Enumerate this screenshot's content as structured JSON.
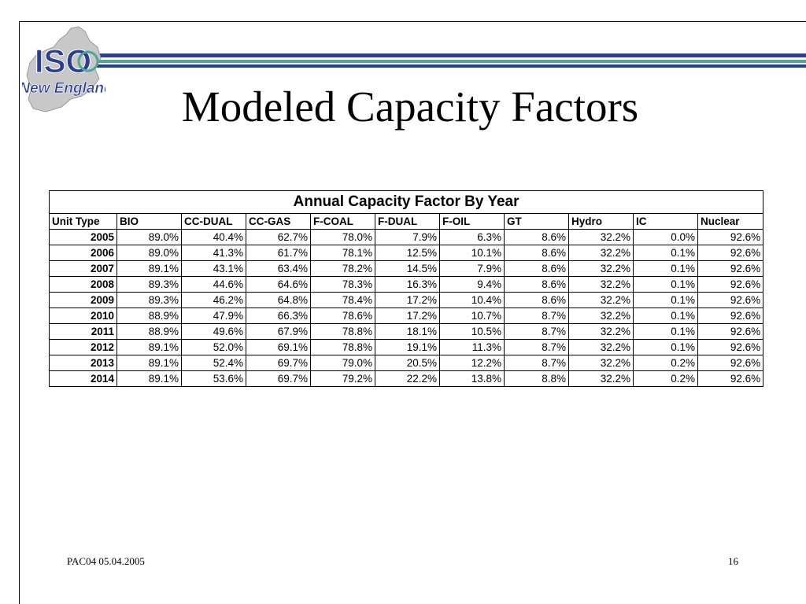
{
  "logo": {
    "line1": "ISO",
    "line2": "New England"
  },
  "title": "Modeled Capacity Factors",
  "table": {
    "caption": "Annual Capacity Factor By Year",
    "columns": [
      "Unit Type",
      "BIO",
      "CC-DUAL",
      "CC-GAS",
      "F-COAL",
      "F-DUAL",
      "F-OIL",
      "GT",
      "Hydro",
      "IC",
      "Nuclear"
    ],
    "rows": [
      [
        "2005",
        "89.0%",
        "40.4%",
        "62.7%",
        "78.0%",
        "7.9%",
        "6.3%",
        "8.6%",
        "32.2%",
        "0.0%",
        "92.6%"
      ],
      [
        "2006",
        "89.0%",
        "41.3%",
        "61.7%",
        "78.1%",
        "12.5%",
        "10.1%",
        "8.6%",
        "32.2%",
        "0.1%",
        "92.6%"
      ],
      [
        "2007",
        "89.1%",
        "43.1%",
        "63.4%",
        "78.2%",
        "14.5%",
        "7.9%",
        "8.6%",
        "32.2%",
        "0.1%",
        "92.6%"
      ],
      [
        "2008",
        "89.3%",
        "44.6%",
        "64.6%",
        "78.3%",
        "16.3%",
        "9.4%",
        "8.6%",
        "32.2%",
        "0.1%",
        "92.6%"
      ],
      [
        "2009",
        "89.3%",
        "46.2%",
        "64.8%",
        "78.4%",
        "17.2%",
        "10.4%",
        "8.6%",
        "32.2%",
        "0.1%",
        "92.6%"
      ],
      [
        "2010",
        "88.9%",
        "47.9%",
        "66.3%",
        "78.6%",
        "17.2%",
        "10.7%",
        "8.7%",
        "32.2%",
        "0.1%",
        "92.6%"
      ],
      [
        "2011",
        "88.9%",
        "49.6%",
        "67.9%",
        "78.8%",
        "18.1%",
        "10.5%",
        "8.7%",
        "32.2%",
        "0.1%",
        "92.6%"
      ],
      [
        "2012",
        "89.1%",
        "52.0%",
        "69.1%",
        "78.8%",
        "19.1%",
        "11.3%",
        "8.7%",
        "32.2%",
        "0.1%",
        "92.6%"
      ],
      [
        "2013",
        "89.1%",
        "52.4%",
        "69.7%",
        "79.0%",
        "20.5%",
        "12.2%",
        "8.7%",
        "32.2%",
        "0.2%",
        "92.6%"
      ],
      [
        "2014",
        "89.1%",
        "53.6%",
        "69.7%",
        "79.2%",
        "22.2%",
        "13.8%",
        "8.8%",
        "32.2%",
        "0.2%",
        "92.6%"
      ]
    ]
  },
  "footer": {
    "left": "PAC04 05.04.2005",
    "page_number": "16"
  },
  "colors": {
    "brand_blue": "#2a3f8f",
    "brand_teal": "#4fa59a",
    "map_gray": "#c8c8c8"
  }
}
